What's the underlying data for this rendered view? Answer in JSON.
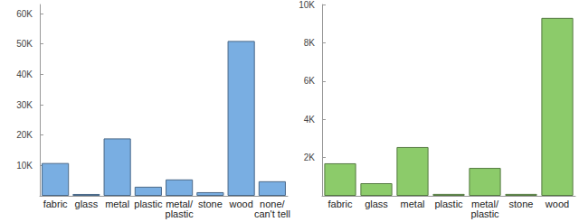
{
  "chart_data": [
    {
      "type": "bar",
      "categories": [
        "fabric",
        "glass",
        "metal",
        "plastic",
        "metal/\nplastic",
        "stone",
        "wood",
        "none/\ncan't tell"
      ],
      "values": [
        10800,
        600,
        18900,
        3000,
        5400,
        1200,
        51000,
        4800
      ],
      "color": "#79aee2",
      "ylim": [
        0,
        63000
      ],
      "yticks": [
        {
          "value": 10000,
          "label": "10K"
        },
        {
          "value": 20000,
          "label": "20K"
        },
        {
          "value": 30000,
          "label": "30K"
        },
        {
          "value": 40000,
          "label": "40K"
        },
        {
          "value": 50000,
          "label": "50K"
        },
        {
          "value": 60000,
          "label": "60K"
        }
      ],
      "grid": false
    },
    {
      "type": "bar",
      "categories": [
        "fabric",
        "glass",
        "metal",
        "plastic",
        "metal/\nplastic",
        "stone",
        "wood"
      ],
      "values": [
        1700,
        660,
        2550,
        100,
        1460,
        100,
        9300
      ],
      "color": "#8ccb6a",
      "ylim": [
        0,
        10000
      ],
      "yticks": [
        {
          "value": 2000,
          "label": "2K"
        },
        {
          "value": 4000,
          "label": "4K"
        },
        {
          "value": 6000,
          "label": "6K"
        },
        {
          "value": 8000,
          "label": "8K"
        },
        {
          "value": 10000,
          "label": "10K"
        }
      ],
      "grid": false
    }
  ]
}
